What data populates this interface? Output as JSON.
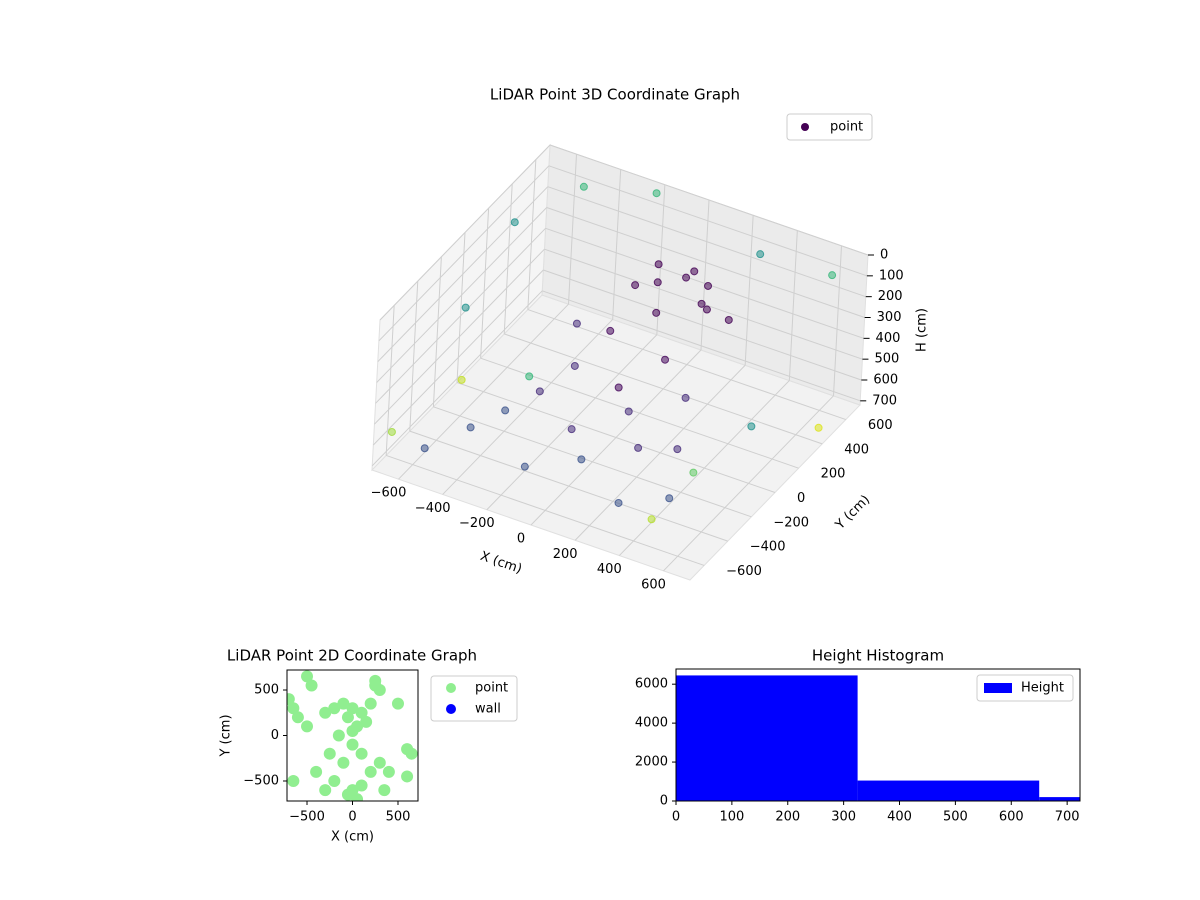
{
  "chart_data": [
    {
      "type": "scatter3d",
      "title": "LiDAR Point 3D Coordinate Graph",
      "xlabel": "X (cm)",
      "ylabel": "Y (cm)",
      "zlabel": "H (cm)",
      "xlim": [
        -720,
        720
      ],
      "ylim": [
        -720,
        720
      ],
      "zlim": [
        720,
        0
      ],
      "xticks": [
        {
          "value": -600,
          "label": "−600"
        },
        {
          "value": -400,
          "label": "−400"
        },
        {
          "value": -200,
          "label": "−200"
        },
        0,
        200,
        400,
        600
      ],
      "yticks": [
        {
          "value": -600,
          "label": "−600"
        },
        {
          "value": -400,
          "label": "−400"
        },
        {
          "value": -200,
          "label": "−200"
        },
        0,
        200,
        400,
        600
      ],
      "zticks": [
        0,
        100,
        200,
        300,
        400,
        500,
        600,
        700
      ],
      "legend": "upper right",
      "series": [
        {
          "name": "point",
          "color": "#440154",
          "x": [
            0,
            100,
            200,
            -50,
            150,
            250,
            50,
            300,
            -100,
            120,
            -200,
            -300,
            -400,
            -500,
            -100,
            0,
            100,
            200,
            300,
            -300,
            -200,
            400,
            500,
            -600,
            250,
            -450,
            150,
            -150,
            350,
            0,
            -650,
            -500,
            600,
            650,
            -700,
            500,
            -600,
            -200,
            300,
            700,
            -700
          ],
          "y": [
            300,
            350,
            300,
            400,
            450,
            250,
            200,
            350,
            300,
            380,
            0,
            -100,
            -200,
            -300,
            -200,
            -300,
            -100,
            -200,
            0,
            200,
            -400,
            -300,
            200,
            -500,
            -450,
            100,
            100,
            200,
            -150,
            0,
            300,
            600,
            650,
            -600,
            -600,
            -650,
            -200,
            650,
            600,
            400,
            0
          ],
          "z": [
            150,
            120,
            180,
            140,
            200,
            160,
            220,
            250,
            200,
            100,
            450,
            550,
            620,
            680,
            600,
            650,
            500,
            580,
            420,
            400,
            700,
            690,
            600,
            700,
            680,
            650,
            350,
            380,
            560,
            480,
            100,
            50,
            100,
            300,
            600,
            550,
            200,
            0,
            80,
            650,
            700
          ],
          "colors": [
            "#440154",
            "#440154",
            "#440154",
            "#440154",
            "#440154",
            "#440154",
            "#440154",
            "#440154",
            "#440154",
            "#440154",
            "#472d7b",
            "#472d7b",
            "#3b528b",
            "#3b528b",
            "#472d7b",
            "#3b528b",
            "#472d7b",
            "#472d7b",
            "#472d7b",
            "#472d7b",
            "#3b528b",
            "#3b528b",
            "#21918c",
            "#3b528b",
            "#3b528b",
            "#35b779",
            "#46085c",
            "#46085c",
            "#472d7b",
            "#46085c",
            "#21918c",
            "#35b779",
            "#35b779",
            "#5ec962",
            "#9fda3a",
            "#b5de2b",
            "#21918c",
            "#35b779",
            "#21918c",
            "#dce319",
            "#c2df23"
          ]
        }
      ]
    },
    {
      "type": "scatter",
      "title": "LiDAR Point 2D Coordinate Graph",
      "xlabel": "X (cm)",
      "ylabel": "Y (cm)",
      "xlim": [
        -720,
        720
      ],
      "ylim": [
        -720,
        720
      ],
      "xticks": [
        {
          "value": -500,
          "label": "−500"
        },
        0,
        500
      ],
      "yticks": [
        {
          "value": -500,
          "label": "−500"
        },
        0,
        500
      ],
      "legend": "outside right",
      "series": [
        {
          "name": "point",
          "color": "#90ee90",
          "x": [
            -500,
            -450,
            -650,
            -600,
            -300,
            -200,
            -100,
            0,
            100,
            200,
            300,
            250,
            -50,
            50,
            150,
            -150,
            0,
            100,
            -100,
            200,
            -200,
            0,
            50,
            -50,
            100,
            300,
            400,
            600,
            650,
            -400,
            -300,
            -650,
            -700,
            500,
            -500,
            250,
            350,
            600,
            0,
            -250
          ],
          "y": [
            650,
            550,
            300,
            200,
            250,
            300,
            350,
            300,
            250,
            350,
            500,
            600,
            200,
            100,
            150,
            0,
            -100,
            -200,
            -300,
            -400,
            -500,
            -600,
            -700,
            -650,
            -550,
            -300,
            -400,
            -150,
            -200,
            -400,
            -600,
            -500,
            400,
            350,
            100,
            550,
            -600,
            -450,
            50,
            -200
          ]
        },
        {
          "name": "wall",
          "color": "#0000ff",
          "x": [],
          "y": []
        }
      ]
    },
    {
      "type": "histogram",
      "title": "Height Histogram",
      "name": "Height",
      "color": "#0000ff",
      "bins": [
        0,
        325,
        650,
        725
      ],
      "values": [
        6450,
        1050,
        200
      ],
      "xlim": [
        0,
        723
      ],
      "ylim": [
        0,
        6780
      ],
      "xticks": [
        0,
        100,
        200,
        300,
        400,
        500,
        600,
        700
      ],
      "yticks": [
        0,
        2000,
        4000,
        6000
      ],
      "legend": "upper right"
    }
  ]
}
